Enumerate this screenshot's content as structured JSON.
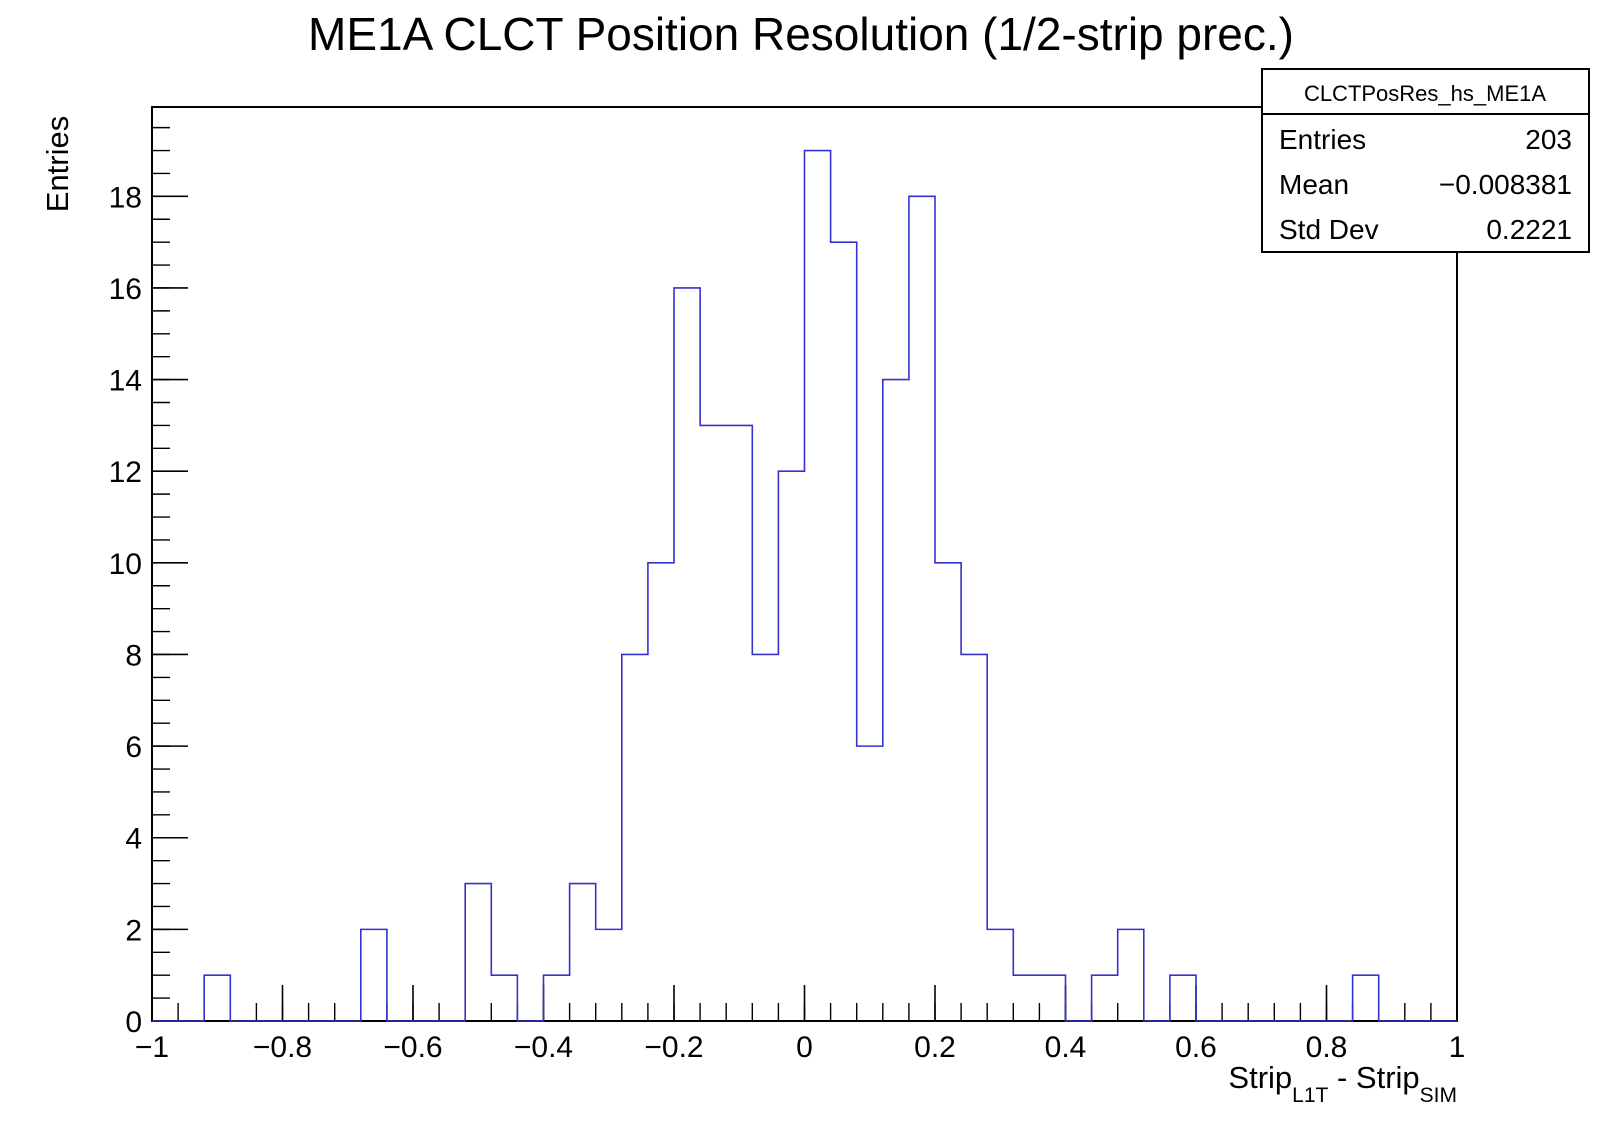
{
  "chart_data": {
    "type": "histogram",
    "title": "ME1A CLCT Position Resolution (1/2-strip prec.)",
    "xlabel": {
      "parts": [
        "Strip",
        "L1T",
        " - Strip",
        "SIM"
      ]
    },
    "ylabel": "Entries",
    "xlim": [
      -1,
      1
    ],
    "ylim": [
      0,
      19.95
    ],
    "bin_width": 0.04,
    "bin_edges_start": -1,
    "values": [
      0,
      0,
      1,
      0,
      0,
      0,
      0,
      0,
      2,
      0,
      0,
      0,
      3,
      1,
      0,
      1,
      3,
      2,
      8,
      10,
      16,
      13,
      13,
      8,
      12,
      19,
      17,
      6,
      14,
      18,
      10,
      8,
      2,
      1,
      1,
      0,
      1,
      2,
      0,
      1,
      0,
      0,
      0,
      0,
      0,
      0,
      1,
      0,
      0,
      0
    ],
    "line_color": "#3333cc",
    "x_ticks": [
      -1,
      -0.8,
      -0.6,
      -0.4,
      -0.2,
      0,
      0.2,
      0.4,
      0.6,
      0.8,
      1
    ],
    "x_tick_labels": [
      "−1",
      "−0.8",
      "−0.6",
      "−0.4",
      "−0.2",
      "0",
      "0.2",
      "0.4",
      "0.6",
      "0.8",
      "1"
    ],
    "y_ticks": [
      0,
      2,
      4,
      6,
      8,
      10,
      12,
      14,
      16,
      18
    ],
    "y_tick_labels": [
      "0",
      "2",
      "4",
      "6",
      "8",
      "10",
      "12",
      "14",
      "16",
      "18"
    ],
    "stats_box": {
      "name": "CLCTPosRes_hs_ME1A",
      "rows": [
        {
          "label": "Entries",
          "value": "203"
        },
        {
          "label": "Mean",
          "value": "−0.008381"
        },
        {
          "label": "Std Dev",
          "value": "0.2221"
        }
      ]
    }
  }
}
